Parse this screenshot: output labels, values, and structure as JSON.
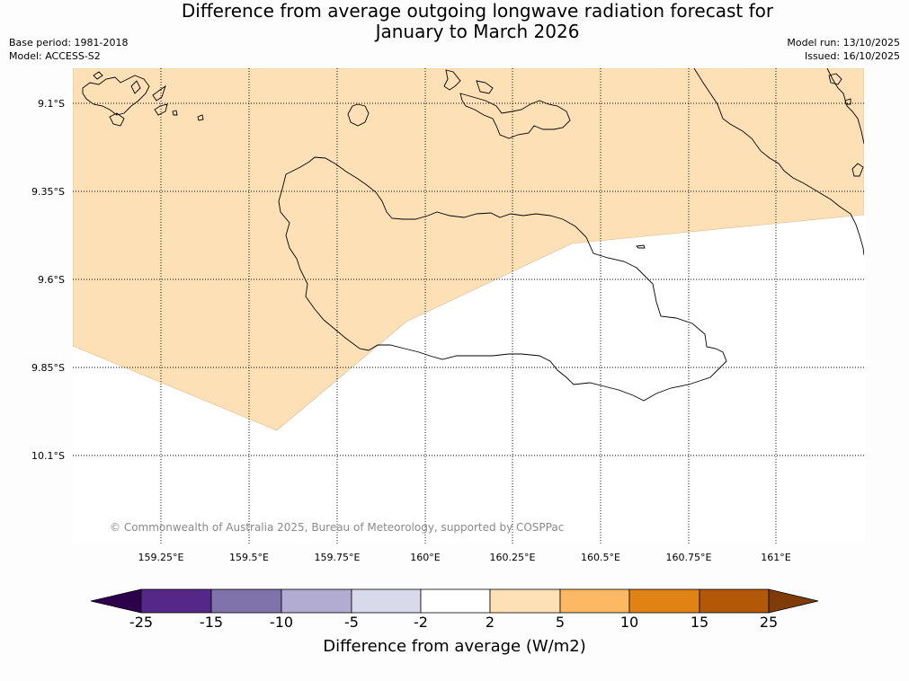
{
  "title": {
    "line1": "Difference from average outgoing longwave radiation forecast for",
    "line2": "January to March 2026"
  },
  "meta": {
    "base_period": "Base period: 1981-2018",
    "model": "Model: ACCESS-S2",
    "model_run": "Model run: 13/10/2025",
    "issued": "Issued: 16/10/2025"
  },
  "map": {
    "lat_labels": [
      "9.1°S",
      "9.35°S",
      "9.6°S",
      "9.85°S",
      "10.1°S"
    ],
    "lon_labels": [
      "159.25°E",
      "159.5°E",
      "159.75°E",
      "160°E",
      "160.25°E",
      "160.5°E",
      "160.75°E",
      "161°E"
    ],
    "shaded_category": "2 to 5",
    "shade_color": "#fde0b6"
  },
  "copyright": "© Commonwealth of Australia 2025, Bureau of Meteorology, supported by COSPPac",
  "colorbar": {
    "label": "Difference from average (W/m2)",
    "ticks": [
      "-25",
      "-15",
      "-10",
      "-5",
      "-2",
      "2",
      "5",
      "10",
      "15",
      "25"
    ],
    "colors": [
      "#2d004b",
      "#542788",
      "#8073ac",
      "#b2abd2",
      "#d8daeb",
      "#ffffff",
      "#fee0b6",
      "#fdb863",
      "#e08214",
      "#b35806",
      "#7f3b08"
    ]
  }
}
